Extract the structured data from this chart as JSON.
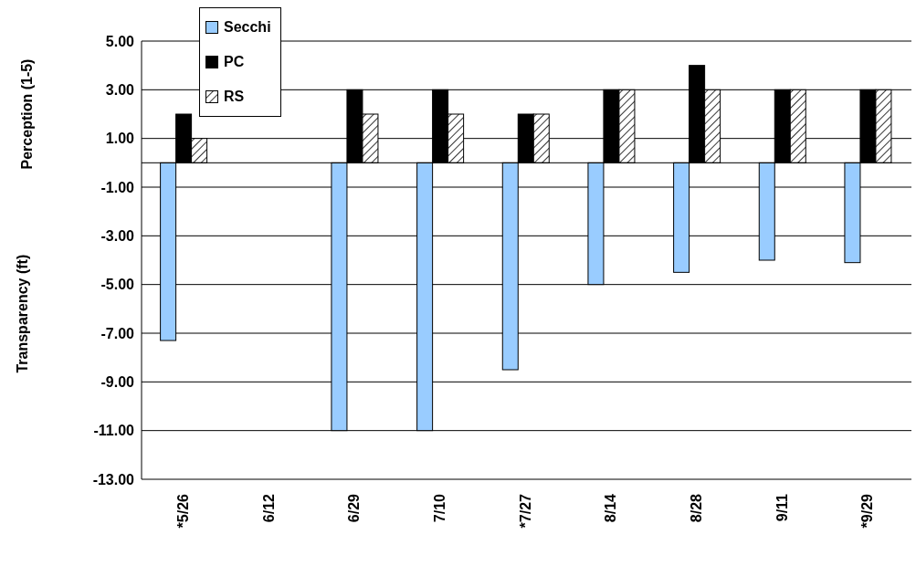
{
  "chart_data": {
    "type": "bar",
    "ylabel": "Transparency (ft)",
    "annotations": [
      "Perception (1-5)"
    ],
    "categories": [
      "*5/26",
      "6/12",
      "6/29",
      "7/10",
      "*7/27",
      "8/14",
      "8/28",
      "9/11",
      "*9/29"
    ],
    "series": [
      {
        "name": "Secchi",
        "color": "#99ccff",
        "values": [
          -7.3,
          null,
          -11,
          -11,
          -8.5,
          -5,
          -4.5,
          -4,
          -4.1
        ]
      },
      {
        "name": "PC",
        "color": "#000000",
        "values": [
          2,
          null,
          3,
          3,
          2,
          3,
          4,
          3,
          3
        ]
      },
      {
        "name": "RS",
        "color": "#ffffff",
        "values": [
          1,
          null,
          2,
          2,
          2,
          3,
          3,
          3,
          3
        ]
      }
    ],
    "ylim": [
      -13,
      5
    ],
    "yticks": [
      {
        "value": -13,
        "label": "-13.00"
      },
      {
        "value": -11,
        "label": "-11.00"
      },
      {
        "value": -9,
        "label": "-9.00"
      },
      {
        "value": -7,
        "label": "-7.00"
      },
      {
        "value": -5,
        "label": "-5.00"
      },
      {
        "value": -3,
        "label": "-3.00"
      },
      {
        "value": -1,
        "label": "-1.00"
      },
      {
        "value": 1,
        "label": "1.00"
      },
      {
        "value": 3,
        "label": "3.00"
      },
      {
        "value": 5,
        "label": "5.00"
      }
    ],
    "grid": "y",
    "legend": "top left"
  }
}
